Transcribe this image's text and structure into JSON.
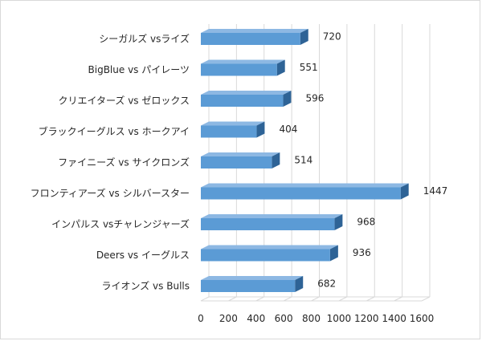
{
  "chart_data": {
    "type": "bar",
    "orientation": "horizontal",
    "style": "3d",
    "categories": [
      "シーガルズ vsライズ",
      "BigBlue vs パイレーツ",
      "クリエイターズ vs ゼロックス",
      "ブラックイーグルス vs ホークアイ",
      "ファイニーズ vs サイクロンズ",
      "フロンティアーズ vs シルバースター",
      "インパルス vsチャレンジャーズ",
      "Deers vs イーグルス",
      "ライオンズ vs Bulls"
    ],
    "values": [
      720,
      551,
      596,
      404,
      514,
      1447,
      968,
      936,
      682
    ],
    "data_labels": [
      "720",
      "551",
      "596",
      "404",
      "514",
      "1447",
      "968",
      "936",
      "682"
    ],
    "xlim": [
      0,
      1600
    ],
    "xticks": [
      "0",
      "200",
      "400",
      "600",
      "800",
      "1000",
      "1200",
      "1400",
      "1600"
    ],
    "title": "",
    "xlabel": "",
    "ylabel": "",
    "grid": "vertical",
    "legend": "none",
    "colors": {
      "bar_front": "#5b9bd5",
      "bar_top": "#8db8e3",
      "bar_side": "#2e6396",
      "gridline": "#d9d9d9",
      "text": "#262626"
    }
  }
}
